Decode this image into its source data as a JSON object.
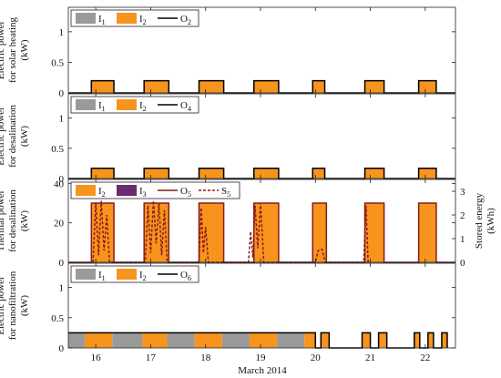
{
  "chart_data": {
    "type": "bar",
    "xlabel": "March 2014",
    "xlim": [
      15.5,
      22.55
    ],
    "xticks": [
      "16",
      "17",
      "18",
      "19",
      "20",
      "21",
      "22"
    ],
    "colors": {
      "I1": "#9a9a9a",
      "I2": "#f7941d",
      "I3": "#6a2c6e",
      "O_line": "#000000",
      "O5": "#8b1a1a",
      "S5": "#8b1a1a"
    },
    "panels": [
      {
        "id": "p1",
        "ylabel": [
          "Electric power",
          "for solar heating",
          "(kW)"
        ],
        "ylim": [
          0,
          1.4
        ],
        "yticks": [
          "0",
          "0.5",
          "1"
        ],
        "legend": [
          {
            "kind": "bar",
            "color": "I1",
            "label": "I",
            "sub": "1"
          },
          {
            "kind": "bar",
            "color": "I2",
            "label": "I",
            "sub": "2"
          },
          {
            "kind": "line",
            "color": "O_line",
            "label": "O",
            "sub": "2"
          }
        ],
        "series": [
          {
            "name": "I2",
            "color": "I2",
            "value": 0.2,
            "segments": [
              [
                15.92,
                16.33
              ],
              [
                16.88,
                17.33
              ],
              [
                17.88,
                18.33
              ],
              [
                18.88,
                19.33
              ],
              [
                19.95,
                20.17
              ],
              [
                20.9,
                21.25
              ],
              [
                21.88,
                22.2
              ]
            ]
          }
        ]
      },
      {
        "id": "p2",
        "ylabel": [
          "Electric power",
          "for desalination",
          "(kW)"
        ],
        "ylim": [
          0,
          1.4
        ],
        "yticks": [
          "0",
          "0.5",
          "1"
        ],
        "legend": [
          {
            "kind": "bar",
            "color": "I1",
            "label": "I",
            "sub": "1"
          },
          {
            "kind": "bar",
            "color": "I2",
            "label": "I",
            "sub": "2"
          },
          {
            "kind": "line",
            "color": "O_line",
            "label": "O",
            "sub": "4"
          }
        ],
        "series": [
          {
            "name": "I2",
            "color": "I2",
            "value": 0.17,
            "segments": [
              [
                15.92,
                16.33
              ],
              [
                16.88,
                17.33
              ],
              [
                17.88,
                18.33
              ],
              [
                18.88,
                19.33
              ],
              [
                19.95,
                20.17
              ],
              [
                20.9,
                21.25
              ],
              [
                21.88,
                22.2
              ]
            ]
          }
        ]
      },
      {
        "id": "p3",
        "ylabel": [
          "Thermal power",
          "for desalination",
          "(kW)"
        ],
        "ylim": [
          0,
          42
        ],
        "yticks": [
          "0",
          "20",
          "40"
        ],
        "y2label": [
          "Stored energy",
          "(kWh)"
        ],
        "y2lim": [
          0,
          3.5
        ],
        "y2ticks": [
          "0",
          "1",
          "2",
          "3"
        ],
        "legend": [
          {
            "kind": "bar",
            "color": "I2",
            "label": "I",
            "sub": "2"
          },
          {
            "kind": "bar",
            "color": "I3",
            "label": "I",
            "sub": "3"
          },
          {
            "kind": "line",
            "color": "O5",
            "label": "O",
            "sub": "5"
          },
          {
            "kind": "dash",
            "color": "S5",
            "label": "S",
            "sub": "5"
          }
        ],
        "series": [
          {
            "name": "I2",
            "color": "I2",
            "value": 30,
            "segments": [
              [
                15.92,
                16.33
              ],
              [
                16.88,
                17.33
              ],
              [
                17.88,
                18.33
              ],
              [
                18.88,
                19.33
              ],
              [
                19.95,
                20.2
              ],
              [
                20.9,
                21.25
              ],
              [
                21.88,
                22.2
              ]
            ]
          }
        ],
        "storage": {
          "name": "S5",
          "points": [
            [
              15.95,
              0
            ],
            [
              16.0,
              2.5
            ],
            [
              16.05,
              0.3
            ],
            [
              16.1,
              2.6
            ],
            [
              16.15,
              0.5
            ],
            [
              16.2,
              2.0
            ],
            [
              16.25,
              0
            ],
            [
              16.9,
              0
            ],
            [
              16.95,
              2.4
            ],
            [
              17.0,
              0.4
            ],
            [
              17.05,
              2.6
            ],
            [
              17.1,
              0.8
            ],
            [
              17.15,
              2.5
            ],
            [
              17.2,
              0.3
            ],
            [
              17.25,
              2.2
            ],
            [
              17.3,
              0
            ],
            [
              17.88,
              0
            ],
            [
              17.92,
              2.3
            ],
            [
              17.96,
              0.4
            ],
            [
              18.0,
              1.5
            ],
            [
              18.05,
              0
            ],
            [
              18.78,
              0
            ],
            [
              18.82,
              1.3
            ],
            [
              18.86,
              0.2
            ],
            [
              18.9,
              2.4
            ],
            [
              18.95,
              0.6
            ],
            [
              19.0,
              2.5
            ],
            [
              19.06,
              0
            ],
            [
              20.0,
              0
            ],
            [
              20.05,
              0.5
            ],
            [
              20.12,
              0.55
            ],
            [
              20.18,
              0
            ],
            [
              20.88,
              0
            ],
            [
              20.92,
              2.4
            ],
            [
              20.96,
              0
            ]
          ]
        }
      },
      {
        "id": "p4",
        "ylabel": [
          "Electric power",
          "for nanofiltration",
          "(kW)"
        ],
        "ylim": [
          0,
          1.4
        ],
        "yticks": [
          "0",
          "0.5",
          "1"
        ],
        "legend": [
          {
            "kind": "bar",
            "color": "I1",
            "label": "I",
            "sub": "1"
          },
          {
            "kind": "bar",
            "color": "I2",
            "label": "I",
            "sub": "2"
          },
          {
            "kind": "line",
            "color": "O_line",
            "label": "O",
            "sub": "6"
          }
        ],
        "series": [
          {
            "name": "I1",
            "color": "I1",
            "value": 0.25,
            "segments": [
              [
                15.5,
                15.8
              ],
              [
                16.3,
                16.85
              ],
              [
                17.3,
                17.8
              ],
              [
                18.3,
                18.8
              ],
              [
                19.3,
                19.8
              ]
            ]
          },
          {
            "name": "I2",
            "color": "I2",
            "value": 0.25,
            "segments": [
              [
                15.8,
                16.3
              ],
              [
                16.85,
                17.3
              ],
              [
                17.8,
                18.3
              ],
              [
                18.8,
                19.3
              ],
              [
                19.8,
                20.0
              ],
              [
                20.1,
                20.25
              ],
              [
                20.85,
                21.0
              ],
              [
                21.15,
                21.3
              ],
              [
                21.8,
                21.9
              ],
              [
                22.05,
                22.15
              ],
              [
                22.3,
                22.4
              ]
            ]
          }
        ],
        "outline": [
          [
            15.5,
            0.25
          ],
          [
            20.0,
            0.25
          ],
          [
            20.0,
            0
          ],
          [
            20.1,
            0
          ],
          [
            20.1,
            0.25
          ],
          [
            20.25,
            0.25
          ],
          [
            20.25,
            0
          ],
          [
            20.85,
            0
          ],
          [
            20.85,
            0.25
          ],
          [
            21.0,
            0.25
          ],
          [
            21.0,
            0
          ],
          [
            21.15,
            0
          ],
          [
            21.15,
            0.25
          ],
          [
            21.3,
            0.25
          ],
          [
            21.3,
            0
          ],
          [
            21.8,
            0
          ],
          [
            21.8,
            0.25
          ],
          [
            21.9,
            0.25
          ],
          [
            21.9,
            0
          ],
          [
            22.05,
            0
          ],
          [
            22.05,
            0.25
          ],
          [
            22.15,
            0.25
          ],
          [
            22.15,
            0
          ],
          [
            22.3,
            0
          ],
          [
            22.3,
            0.25
          ],
          [
            22.4,
            0.25
          ],
          [
            22.4,
            0
          ]
        ]
      }
    ]
  }
}
